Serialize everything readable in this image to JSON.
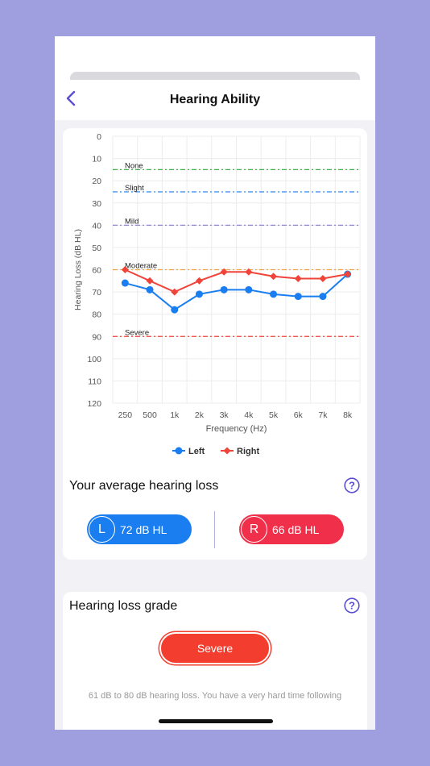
{
  "header": {
    "title": "Hearing Ability"
  },
  "chart_data": {
    "type": "line",
    "ylabel": "Hearing Loss (dB HL)",
    "xlabel": "Frequency (Hz)",
    "categories": [
      "250",
      "500",
      "1k",
      "2k",
      "3k",
      "4k",
      "5k",
      "6k",
      "7k",
      "8k"
    ],
    "y_ticks": [
      "0",
      "10",
      "20",
      "30",
      "40",
      "50",
      "60",
      "70",
      "80",
      "90",
      "100",
      "110",
      "120"
    ],
    "ylim": [
      0,
      120
    ],
    "y_inverted": true,
    "grid": true,
    "series": [
      {
        "name": "Left",
        "color": "#1a7ef0",
        "marker": "circle",
        "values": [
          66,
          69,
          78,
          71,
          69,
          69,
          71,
          72,
          72,
          62
        ]
      },
      {
        "name": "Right",
        "color": "#f0443a",
        "marker": "diamond",
        "values": [
          60,
          65,
          70,
          65,
          61,
          61,
          63,
          64,
          64,
          62
        ]
      }
    ],
    "thresholds": [
      {
        "label": "None",
        "value": 15,
        "color": "#3cb04a"
      },
      {
        "label": "Slight",
        "value": 25,
        "color": "#1a7ef0"
      },
      {
        "label": "Mild",
        "value": 40,
        "color": "#8c7fd0"
      },
      {
        "label": "Moderate",
        "value": 60,
        "color": "#f0a040"
      },
      {
        "label": "Severe",
        "value": 90,
        "color": "#f0443a"
      }
    ],
    "legend": "bottom"
  },
  "average": {
    "title": "Your average hearing loss",
    "left_letter": "L",
    "left_value": "72 dB HL",
    "right_letter": "R",
    "right_value": "66 dB HL"
  },
  "grade": {
    "title": "Hearing loss grade",
    "level": "Severe",
    "description": "61 dB to 80 dB hearing loss. You have a very hard time following"
  }
}
